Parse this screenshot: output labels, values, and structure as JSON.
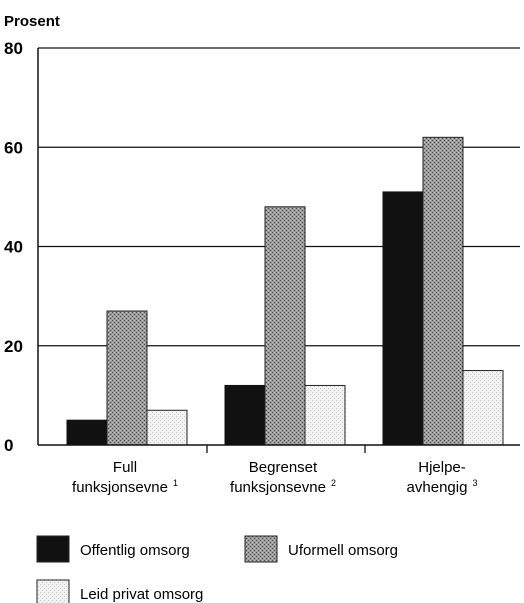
{
  "chart_data": {
    "type": "bar",
    "ylabel": "Prosent",
    "ylim": [
      0,
      80
    ],
    "yticks": [
      0,
      20,
      40,
      60,
      80
    ],
    "grid": true,
    "legend_position": "bottom",
    "categories": [
      {
        "lines": [
          "Full",
          "funksjonsevne"
        ],
        "footnote": "1"
      },
      {
        "lines": [
          "Begrenset",
          "funksjonsevne"
        ],
        "footnote": "2"
      },
      {
        "lines": [
          "Hjelpe-",
          "avhengig"
        ],
        "footnote": "3"
      }
    ],
    "series": [
      {
        "name": "Offentlig omsorg",
        "color": "#111111",
        "pattern": "solid",
        "values": [
          5,
          12,
          51
        ]
      },
      {
        "name": "Uformell omsorg",
        "color": "#8a8a8a",
        "pattern": "dark-dots",
        "values": [
          27,
          48,
          62
        ]
      },
      {
        "name": "Leid privat omsorg",
        "color": "#ececec",
        "pattern": "light-dots",
        "values": [
          7,
          12,
          15
        ]
      }
    ]
  }
}
